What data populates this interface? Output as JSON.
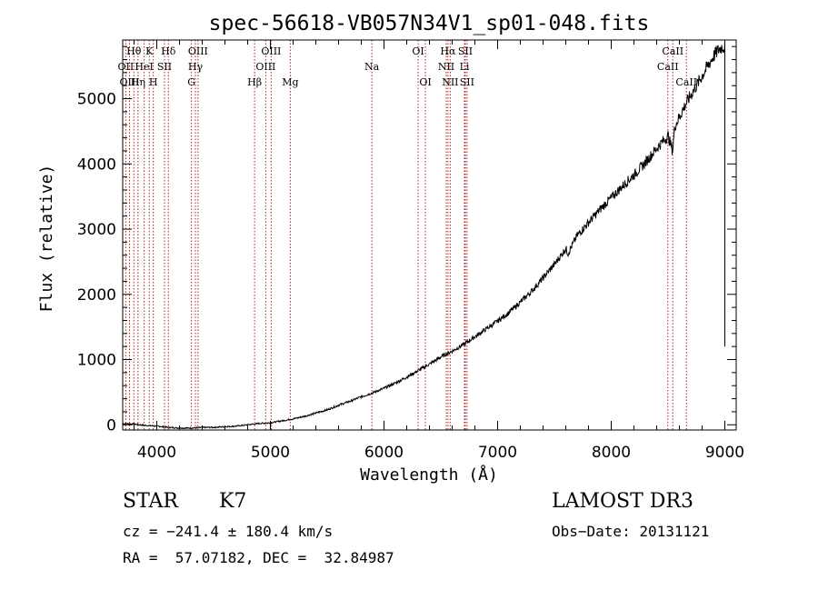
{
  "chart_data": {
    "type": "line",
    "title": "spec-56618-VB057N34V1_sp01-048.fits",
    "xlabel": "Wavelength (Å)",
    "ylabel": "Flux (relative)",
    "xlim": [
      3700,
      9100
    ],
    "ylim": [
      -80,
      5900
    ],
    "xticks": [
      4000,
      5000,
      6000,
      7000,
      8000,
      9000
    ],
    "yticks": [
      0,
      1000,
      2000,
      3000,
      4000,
      5000
    ],
    "grid": false,
    "series": [
      {
        "name": "flux",
        "x": [
          3700,
          3800,
          3900,
          4000,
          4100,
          4200,
          4300,
          4400,
          4500,
          4600,
          4700,
          4800,
          4900,
          5000,
          5100,
          5200,
          5300,
          5400,
          5500,
          5600,
          5700,
          5800,
          5900,
          6000,
          6100,
          6200,
          6300,
          6400,
          6500,
          6600,
          6700,
          6800,
          6900,
          7000,
          7100,
          7200,
          7300,
          7400,
          7500,
          7550,
          7600,
          7620,
          7700,
          7800,
          7900,
          8000,
          8100,
          8200,
          8300,
          8400,
          8500,
          8540,
          8560,
          8600,
          8650,
          8700,
          8800,
          8850,
          8900,
          8950,
          8980,
          9000
        ],
        "y": [
          20,
          10,
          -10,
          -20,
          -40,
          -50,
          -50,
          -40,
          -40,
          -30,
          -20,
          0,
          20,
          30,
          60,
          90,
          130,
          180,
          230,
          300,
          360,
          430,
          490,
          560,
          640,
          730,
          830,
          930,
          1040,
          1130,
          1230,
          1350,
          1470,
          1590,
          1720,
          1880,
          2050,
          2250,
          2460,
          2580,
          2700,
          2630,
          2900,
          3100,
          3300,
          3480,
          3660,
          3830,
          4020,
          4240,
          4430,
          4200,
          4580,
          4720,
          4900,
          5050,
          5350,
          5500,
          5650,
          5760,
          5800,
          5780
        ]
      }
    ],
    "lines": [
      {
        "label": "Hθ",
        "wl": 3798,
        "row": 0
      },
      {
        "label": "OII",
        "wl": 3727,
        "row": 1
      },
      {
        "label": "OIII",
        "wl": 3760,
        "row": 2
      },
      {
        "label": "K",
        "wl": 3934,
        "row": 0
      },
      {
        "label": "H",
        "wl": 3969,
        "row": 2
      },
      {
        "label": "Hη",
        "wl": 3835,
        "row": 2
      },
      {
        "label": "HeI",
        "wl": 3889,
        "row": 1
      },
      {
        "label": "SII",
        "wl": 4068,
        "row": 1
      },
      {
        "label": "Hδ",
        "wl": 4102,
        "row": 0
      },
      {
        "label": "OIII",
        "wl": 4363,
        "row": 0
      },
      {
        "label": "Hγ",
        "wl": 4340,
        "row": 1
      },
      {
        "label": "G",
        "wl": 4305,
        "row": 2
      },
      {
        "label": "Hβ",
        "wl": 4861,
        "row": 2
      },
      {
        "label": "OIII",
        "wl": 5007,
        "row": 0
      },
      {
        "label": "OIII",
        "wl": 4959,
        "row": 1
      },
      {
        "label": "Mg",
        "wl": 5175,
        "row": 2
      },
      {
        "label": "Na",
        "wl": 5893,
        "row": 1
      },
      {
        "label": "OI",
        "wl": 6300,
        "row": 0
      },
      {
        "label": "OI",
        "wl": 6364,
        "row": 2
      },
      {
        "label": "Hα",
        "wl": 6563,
        "row": 0
      },
      {
        "label": "SII",
        "wl": 6716,
        "row": 0
      },
      {
        "label": "NII",
        "wl": 6548,
        "row": 1
      },
      {
        "label": "Li",
        "wl": 6708,
        "row": 1
      },
      {
        "label": "NII",
        "wl": 6583,
        "row": 2
      },
      {
        "label": "SII",
        "wl": 6731,
        "row": 2
      },
      {
        "label": "CaII",
        "wl": 8542,
        "row": 0
      },
      {
        "label": "CaII",
        "wl": 8498,
        "row": 1
      },
      {
        "label": "CaII",
        "wl": 8662,
        "row": 2
      }
    ]
  },
  "info": {
    "object_class": "STAR",
    "subclass": "K7",
    "survey": "LAMOST DR3",
    "cz": "cz = −241.4 ± 180.4 km/s",
    "obs_date": "Obs−Date: 20131121",
    "coords": "RA =  57.07182, DEC =  32.84987"
  }
}
